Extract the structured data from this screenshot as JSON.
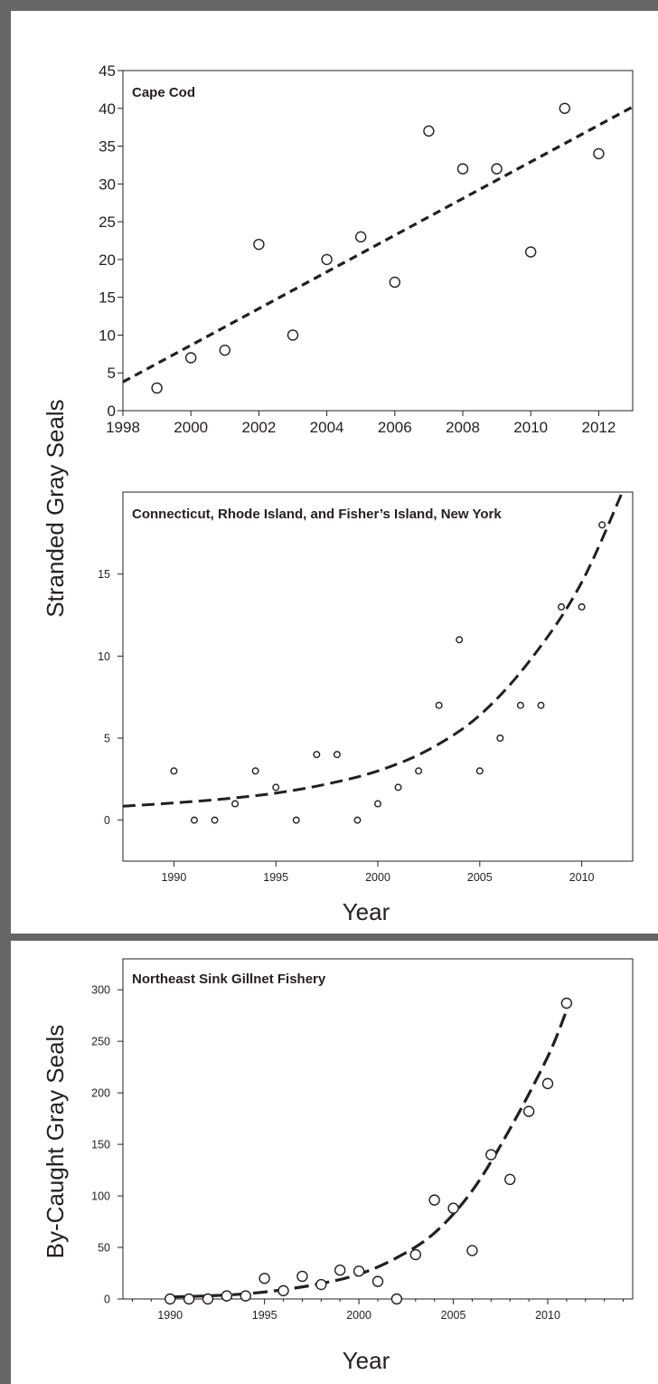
{
  "figure": {
    "frame_color": "#666666",
    "ink_color": "#231f20",
    "top_ylabel": "Stranded Gray Seals",
    "bottom_ylabel": "By-Caught Gray Seals",
    "middle_xlabel": "Year",
    "bottom_xlabel": "Year"
  },
  "chart_data": [
    {
      "type": "scatter",
      "title": "Cape Cod",
      "xlabel": "",
      "ylabel": "Stranded Gray Seals",
      "xlim": [
        1998,
        2013
      ],
      "ylim": [
        0,
        45
      ],
      "x_ticks": [
        1998,
        2000,
        2002,
        2004,
        2006,
        2008,
        2010,
        2012
      ],
      "y_ticks": [
        0,
        5,
        10,
        15,
        20,
        25,
        30,
        35,
        40,
        45
      ],
      "grid": false,
      "series": [
        {
          "x": [
            1999,
            2000,
            2001,
            2002,
            2003,
            2004,
            2005,
            2006,
            2007,
            2008,
            2009,
            2010,
            2011,
            2012
          ],
          "y": [
            3,
            7,
            8,
            22,
            10,
            20,
            23,
            17,
            37,
            32,
            32,
            21,
            40,
            34
          ]
        }
      ],
      "fit": {
        "kind": "linear",
        "style": "dashed",
        "x": [
          1998,
          2013
        ],
        "y": [
          3.8,
          40.2
        ]
      }
    },
    {
      "type": "scatter",
      "title": "Connecticut, Rhode Island, and Fisher’s Island, New York",
      "xlabel": "Year",
      "ylabel": "Stranded Gray Seals",
      "xlim": [
        1987.5,
        2012.5
      ],
      "ylim": [
        -2.5,
        20
      ],
      "x_ticks": [
        1990,
        1995,
        2000,
        2005,
        2010
      ],
      "y_ticks": [
        0,
        5,
        10,
        15
      ],
      "grid": false,
      "series": [
        {
          "x": [
            1990,
            1991,
            1992,
            1993,
            1994,
            1995,
            1996,
            1997,
            1998,
            1999,
            2000,
            2001,
            2002,
            2003,
            2004,
            2005,
            2006,
            2007,
            2008,
            2009,
            2010,
            2011
          ],
          "y": [
            3,
            0,
            0,
            1,
            3,
            2,
            0,
            4,
            4,
            0,
            1,
            2,
            3,
            7,
            11,
            3,
            5,
            7,
            7,
            13,
            13,
            18
          ]
        }
      ],
      "fit": {
        "kind": "exponential",
        "style": "dashed",
        "x": [
          1987.5,
          1990,
          1992.5,
          1995,
          1997.5,
          2000,
          2002.5,
          2005,
          2007.5,
          2010,
          2012.5
        ],
        "y": [
          0.85,
          1.05,
          1.3,
          1.65,
          2.2,
          3.0,
          4.3,
          6.4,
          9.8,
          14.5,
          21.5
        ]
      }
    },
    {
      "type": "scatter",
      "title": "Northeast Sink Gillnet Fishery",
      "xlabel": "Year",
      "ylabel": "By-Caught Gray Seals",
      "xlim": [
        1987.5,
        2014.5
      ],
      "ylim": [
        0,
        330
      ],
      "x_ticks": [
        1990,
        1995,
        2000,
        2005,
        2010
      ],
      "y_ticks": [
        0,
        50,
        100,
        150,
        200,
        250,
        300
      ],
      "grid": false,
      "series": [
        {
          "x": [
            1990,
            1991,
            1992,
            1993,
            1994,
            1995,
            1996,
            1997,
            1998,
            1999,
            2000,
            2001,
            2002,
            2003,
            2004,
            2005,
            2006,
            2007,
            2008,
            2009,
            2010,
            2011
          ],
          "y": [
            0,
            0,
            0,
            3,
            3,
            20,
            8,
            22,
            14,
            28,
            27,
            17,
            0,
            43,
            96,
            88,
            47,
            140,
            116,
            182,
            209,
            287
          ]
        }
      ],
      "fit": {
        "kind": "exponential",
        "style": "dashed",
        "x": [
          1990,
          1992,
          1994,
          1996,
          1998,
          2000,
          2002,
          2004,
          2006,
          2008,
          2010,
          2011
        ],
        "y": [
          2,
          3,
          5,
          9,
          15,
          24,
          40,
          64,
          105,
          165,
          235,
          280
        ]
      }
    }
  ]
}
